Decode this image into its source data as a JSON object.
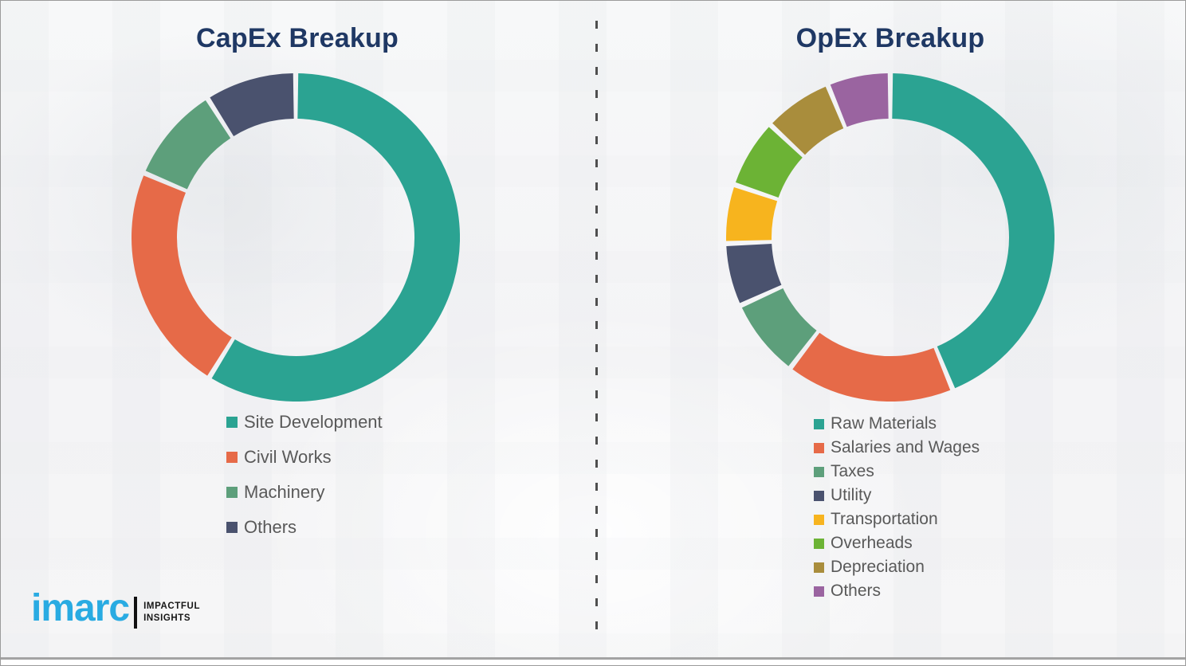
{
  "chart_data": [
    {
      "type": "donut",
      "title": "CapEx Breakup",
      "legend_position": "below-left",
      "data_labels_shown": false,
      "values_are": "percent, estimated from arc angles",
      "segments": [
        {
          "label": "Site Development",
          "value": 58.8,
          "color": "#2BA392"
        },
        {
          "label": "Civil Works",
          "value": 22.6,
          "color": "#E66A48"
        },
        {
          "label": "Machinery",
          "value": 9.6,
          "color": "#5D9F7B"
        },
        {
          "label": "Others",
          "value": 9.0,
          "color": "#4A526E"
        }
      ]
    },
    {
      "type": "donut",
      "title": "OpEx Breakup",
      "legend_position": "below-left",
      "data_labels_shown": false,
      "values_are": "percent, estimated from arc angles",
      "segments": [
        {
          "label": "Raw Materials",
          "value": 43.8,
          "color": "#2BA392"
        },
        {
          "label": "Salaries and Wages",
          "value": 16.6,
          "color": "#E66A48"
        },
        {
          "label": "Taxes",
          "value": 7.8,
          "color": "#5D9F7B"
        },
        {
          "label": "Utility",
          "value": 6.2,
          "color": "#4A526E"
        },
        {
          "label": "Transportation",
          "value": 5.8,
          "color": "#F7B41E"
        },
        {
          "label": "Overheads",
          "value": 6.8,
          "color": "#6CB335"
        },
        {
          "label": "Depreciation",
          "value": 6.8,
          "color": "#A98D3C"
        },
        {
          "label": "Others",
          "value": 6.2,
          "color": "#9A64A0"
        }
      ]
    }
  ],
  "footer": {
    "logo_text": "imarc",
    "tagline_line1": "IMPACTFUL",
    "tagline_line2": "INSIGHTS",
    "logo_color": "#29ABE2"
  },
  "style": {
    "title_color": "#1F3864",
    "legend_text_color": "#595959",
    "divider_color": "#4F4F4F"
  }
}
